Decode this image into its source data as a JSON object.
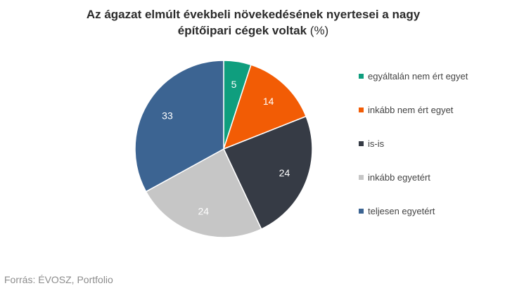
{
  "title": {
    "line1": "Az ágazat elmúlt évekbeli növekedésének nyertesei a nagy",
    "line2": "építőipari cégek voltak",
    "unit": "(%)"
  },
  "chart_data": {
    "type": "pie",
    "title": "Az ágazat elmúlt évekbeli növekedésének nyertesei a nagy építőipari cégek voltak (%)",
    "legend_position": "right",
    "start_angle": "12 o'clock, clockwise",
    "categories": [
      "egyáltalán nem ért egyet",
      "inkább nem ért egyet",
      "is-is",
      "inkább egyetért",
      "teljesen egyetért"
    ],
    "values": [
      5,
      14,
      24,
      24,
      33
    ],
    "value_labels": [
      "5",
      "14",
      "24",
      "24",
      "33"
    ],
    "colors": [
      "#0f9e7e",
      "#f25c05",
      "#363b45",
      "#c6c6c6",
      "#3c6492"
    ]
  },
  "legend": {
    "items": [
      {
        "label": "egyáltalán nem ért egyet",
        "color": "#0f9e7e"
      },
      {
        "label": "inkább nem ért egyet",
        "color": "#f25c05"
      },
      {
        "label": "is-is",
        "color": "#363b45"
      },
      {
        "label": "inkább egyetért",
        "color": "#c6c6c6"
      },
      {
        "label": "teljesen egyetért",
        "color": "#3c6492"
      }
    ]
  },
  "source": "Forrás: ÉVOSZ, Portfolio"
}
